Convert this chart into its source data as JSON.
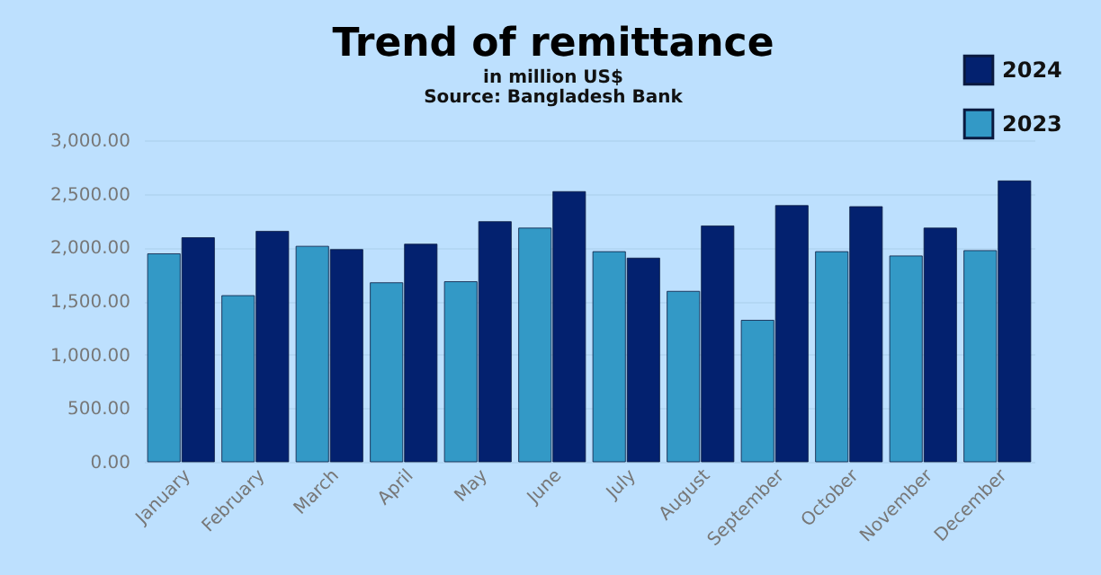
{
  "chart_data": {
    "type": "bar",
    "title": "Trend of remittance",
    "subtitle": "in million US$",
    "annotations": [
      "Source: Bangladesh Bank"
    ],
    "categories": [
      "January",
      "February",
      "March",
      "April",
      "May",
      "June",
      "July",
      "August",
      "September",
      "October",
      "November",
      "December"
    ],
    "series": [
      {
        "name": "2023",
        "color": "#3399c6",
        "values": [
          1940,
          1550,
          2010,
          1670,
          1680,
          2180,
          1960,
          1590,
          1320,
          1960,
          1920,
          1970
        ]
      },
      {
        "name": "2024",
        "color": "#03216f",
        "values": [
          2090,
          2150,
          1980,
          2030,
          2240,
          2520,
          1900,
          2200,
          2390,
          2380,
          2180,
          2620
        ]
      }
    ],
    "ylim": [
      0,
      3000
    ],
    "yticks": [
      {
        "value": 0,
        "label": "0.00"
      },
      {
        "value": 500,
        "label": "500.00"
      },
      {
        "value": 1000,
        "label": "1,000.00"
      },
      {
        "value": 1500,
        "label": "1,500.00"
      },
      {
        "value": 2000,
        "label": "2,000.00"
      },
      {
        "value": 2500,
        "label": "2,500.00"
      },
      {
        "value": 3000,
        "label": "3,000.00"
      }
    ],
    "grid": "y",
    "legend": "top right"
  }
}
